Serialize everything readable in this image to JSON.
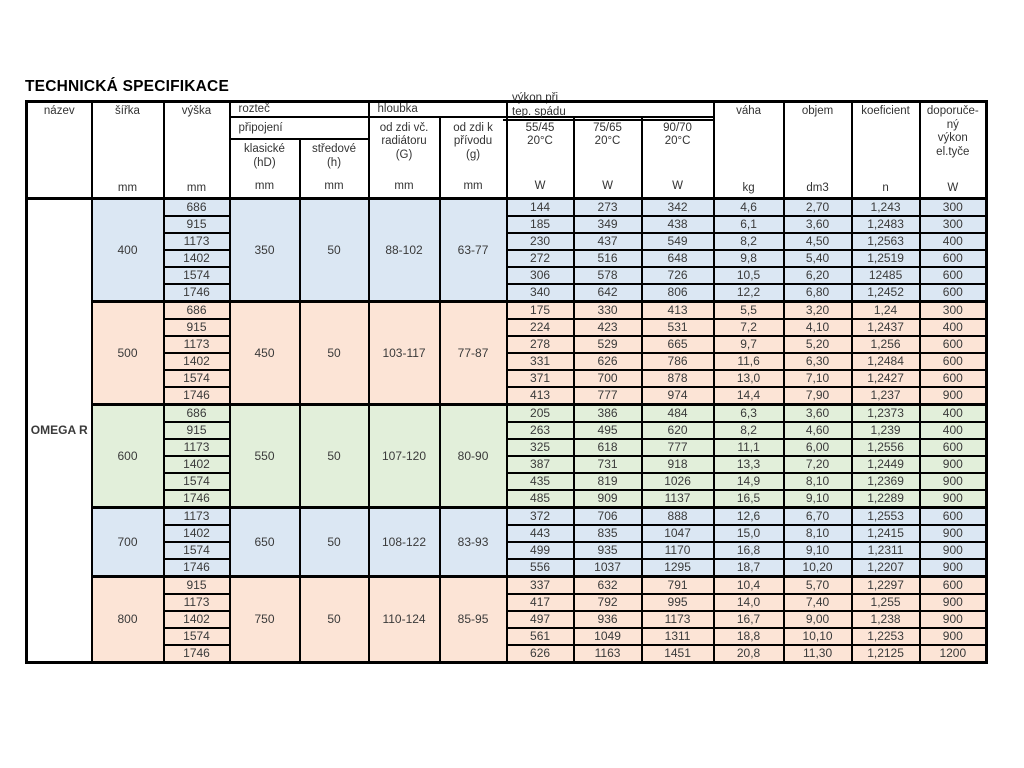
{
  "page": {
    "title": "TECHNICKÁ SPECIFIKACE"
  },
  "product": "OMEGA R",
  "colors": {
    "blue": "#dbe7f3",
    "peach": "#fce4d6",
    "green": "#e2efda"
  },
  "header": {
    "nazev": "název",
    "sirka": "šířka",
    "vyska": "výška",
    "roztec": "rozteč",
    "pripojeni": "připojení",
    "klasicke": [
      "klasické",
      "(hD)"
    ],
    "stredove": [
      "středové",
      "(h)"
    ],
    "hloubka": "hloubka",
    "od_zdi_vc": [
      "od zdi  vč.",
      "radiátoru",
      "(G)"
    ],
    "od_zdi_k": [
      "od zdi  k",
      "přívodu",
      "(g)"
    ],
    "vykon": [
      "výkon při",
      "tep. spádu"
    ],
    "temps": [
      [
        "55/45",
        "20°C"
      ],
      [
        "75/65",
        "20°C"
      ],
      [
        "90/70",
        "20°C"
      ]
    ],
    "vaha": "váha",
    "objem": "objem",
    "koeficient": "koeficient",
    "doporuceny": [
      "doporuče-",
      "ný",
      "výkon",
      "el.tyče"
    ],
    "units": {
      "mm": "mm",
      "w": "W",
      "kg": "kg",
      "dm3": "dm3",
      "n": "n"
    }
  },
  "groups": [
    {
      "sirka": "400",
      "klasicke": "350",
      "stredove": "50",
      "g_range": "88-102",
      "p_range": "63-77",
      "color": "blue",
      "rows": [
        [
          "686",
          "144",
          "273",
          "342",
          "4,6",
          "2,70",
          "1,243",
          "300"
        ],
        [
          "915",
          "185",
          "349",
          "438",
          "6,1",
          "3,60",
          "1,2483",
          "300"
        ],
        [
          "1173",
          "230",
          "437",
          "549",
          "8,2",
          "4,50",
          "1,2563",
          "400"
        ],
        [
          "1402",
          "272",
          "516",
          "648",
          "9,8",
          "5,40",
          "1,2519",
          "600"
        ],
        [
          "1574",
          "306",
          "578",
          "726",
          "10,5",
          "6,20",
          "12485",
          "600"
        ],
        [
          "1746",
          "340",
          "642",
          "806",
          "12,2",
          "6,80",
          "1,2452",
          "600"
        ]
      ]
    },
    {
      "sirka": "500",
      "klasicke": "450",
      "stredove": "50",
      "g_range": "103-117",
      "p_range": "77-87",
      "color": "peach",
      "rows": [
        [
          "686",
          "175",
          "330",
          "413",
          "5,5",
          "3,20",
          "1,24",
          "300"
        ],
        [
          "915",
          "224",
          "423",
          "531",
          "7,2",
          "4,10",
          "1,2437",
          "400"
        ],
        [
          "1173",
          "278",
          "529",
          "665",
          "9,7",
          "5,20",
          "1,256",
          "600"
        ],
        [
          "1402",
          "331",
          "626",
          "786",
          "11,6",
          "6,30",
          "1,2484",
          "600"
        ],
        [
          "1574",
          "371",
          "700",
          "878",
          "13,0",
          "7,10",
          "1,2427",
          "600"
        ],
        [
          "1746",
          "413",
          "777",
          "974",
          "14,4",
          "7,90",
          "1,237",
          "900"
        ]
      ]
    },
    {
      "sirka": "600",
      "klasicke": "550",
      "stredove": "50",
      "g_range": "107-120",
      "p_range": "80-90",
      "color": "green",
      "rows": [
        [
          "686",
          "205",
          "386",
          "484",
          "6,3",
          "3,60",
          "1,2373",
          "400"
        ],
        [
          "915",
          "263",
          "495",
          "620",
          "8,2",
          "4,60",
          "1,239",
          "400"
        ],
        [
          "1173",
          "325",
          "618",
          "777",
          "11,1",
          "6,00",
          "1,2556",
          "600"
        ],
        [
          "1402",
          "387",
          "731",
          "918",
          "13,3",
          "7,20",
          "1,2449",
          "900"
        ],
        [
          "1574",
          "435",
          "819",
          "1026",
          "14,9",
          "8,10",
          "1,2369",
          "900"
        ],
        [
          "1746",
          "485",
          "909",
          "1137",
          "16,5",
          "9,10",
          "1,2289",
          "900"
        ]
      ]
    },
    {
      "sirka": "700",
      "klasicke": "650",
      "stredove": "50",
      "g_range": "108-122",
      "p_range": "83-93",
      "color": "blue",
      "rows": [
        [
          "1173",
          "372",
          "706",
          "888",
          "12,6",
          "6,70",
          "1,2553",
          "600"
        ],
        [
          "1402",
          "443",
          "835",
          "1047",
          "15,0",
          "8,10",
          "1,2415",
          "900"
        ],
        [
          "1574",
          "499",
          "935",
          "1170",
          "16,8",
          "9,10",
          "1,2311",
          "900"
        ],
        [
          "1746",
          "556",
          "1037",
          "1295",
          "18,7",
          "10,20",
          "1,2207",
          "900"
        ]
      ]
    },
    {
      "sirka": "800",
      "klasicke": "750",
      "stredove": "50",
      "g_range": "110-124",
      "p_range": "85-95",
      "color": "peach",
      "rows": [
        [
          "915",
          "337",
          "632",
          "791",
          "10,4",
          "5,70",
          "1,2297",
          "600"
        ],
        [
          "1173",
          "417",
          "792",
          "995",
          "14,0",
          "7,40",
          "1,255",
          "900"
        ],
        [
          "1402",
          "497",
          "936",
          "1173",
          "16,7",
          "9,00",
          "1,238",
          "900"
        ],
        [
          "1574",
          "561",
          "1049",
          "1311",
          "18,8",
          "10,10",
          "1,2253",
          "900"
        ],
        [
          "1746",
          "626",
          "1163",
          "1451",
          "20,8",
          "11,30",
          "1,2125",
          "1200"
        ]
      ]
    }
  ]
}
